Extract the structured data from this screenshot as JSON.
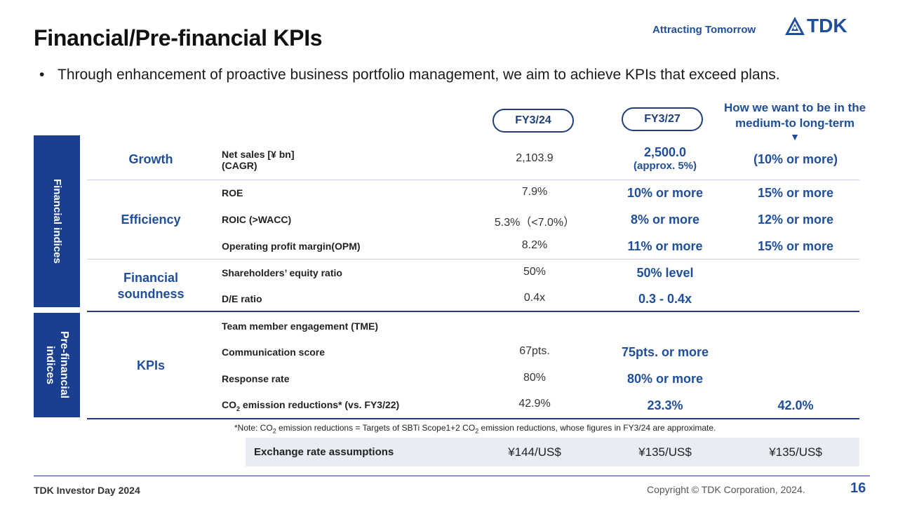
{
  "header": {
    "title": "Financial/Pre-financial  KPIs",
    "tagline": "Attracting Tomorrow",
    "logo_text": "TDK"
  },
  "bullet": "Through enhancement of proactive business portfolio management, we aim to achieve KPIs that exceed plans.",
  "columns": {
    "fy24": "FY3/24",
    "fy27": "FY3/27",
    "longterm": "How we want to be in the medium-to long-term",
    "longterm_arrow": "▼"
  },
  "sidebar": {
    "financial": "Financial indices",
    "prefinancial": "Pre-financial indices"
  },
  "categories": {
    "growth": "Growth",
    "efficiency": "Efficiency",
    "soundness": "Financial soundness",
    "kpis": "KPIs"
  },
  "rows": {
    "net_sales": {
      "label": "Net sales [¥ bn]",
      "sub": " (CAGR)",
      "fy24": "2,103.9",
      "fy27": "2,500.0",
      "fy27_sub": "(approx. 5%)",
      "lt": "(10% or more)"
    },
    "roe": {
      "label": "ROE",
      "fy24": "7.9%",
      "fy27": "10% or more",
      "lt": "15% or more"
    },
    "roic": {
      "label": "ROIC   (>WACC)",
      "fy24": "5.3%（<7.0%）",
      "fy27": "8% or more",
      "lt": "12% or more"
    },
    "opm": {
      "label": "Operating profit margin(OPM)",
      "fy24": "8.2%",
      "fy27": "11% or more",
      "lt": "15% or more"
    },
    "equity": {
      "label": "Shareholders’ equity ratio",
      "fy24": "50%",
      "fy27": "50% level"
    },
    "de": {
      "label": "D/E ratio",
      "fy24": "0.4x",
      "fy27": "0.3 - 0.4x"
    },
    "tme": {
      "label": "Team member engagement (TME)"
    },
    "comm": {
      "label": "Communication score",
      "fy24": "67pts.",
      "fy27": "75pts. or more"
    },
    "resp": {
      "label": "Response rate",
      "fy24": "80%",
      "fy27": "80% or more"
    },
    "co2": {
      "label_a": "CO",
      "label_sub": "2",
      "label_b": " emission reductions* (vs. FY3/22)",
      "fy24": "42.9%",
      "fy27": "23.3%",
      "lt": "42.0%"
    }
  },
  "note": {
    "a": "*Note: CO",
    "s1": "2",
    "b": " emission reductions = Targets of SBTi Scope1+2 CO",
    "s2": "2",
    "c": " emission reductions, whose figures in FY3/24 are approximate."
  },
  "exchange": {
    "label": "Exchange rate assumptions",
    "fy24": "¥144/US$",
    "fy27": "¥135/US$",
    "lt": "¥135/US$"
  },
  "footer": {
    "left": "TDK Investor Day 2024",
    "copyright": "Copyright  © TDK Corporation, 2024.",
    "page": "16"
  },
  "colors": {
    "brand_blue": "#1f4e9a",
    "sidebar_blue": "#1a3f8f",
    "fx_bg": "#e8edf5"
  }
}
